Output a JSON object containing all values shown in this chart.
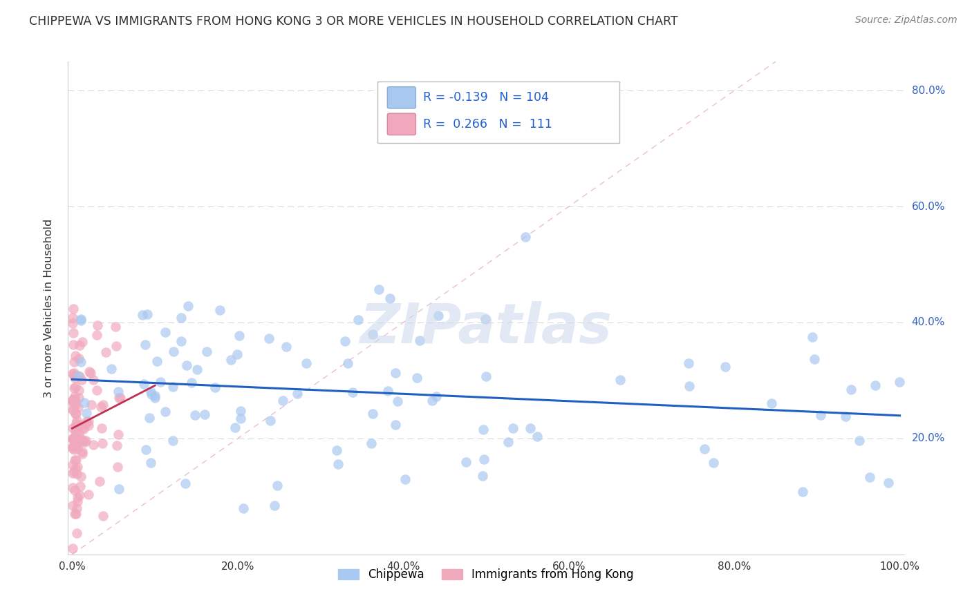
{
  "title": "CHIPPEWA VS IMMIGRANTS FROM HONG KONG 3 OR MORE VEHICLES IN HOUSEHOLD CORRELATION CHART",
  "source": "Source: ZipAtlas.com",
  "ylabel": "3 or more Vehicles in Household",
  "watermark": "ZIPatlas",
  "legend_chippewa_R": "-0.139",
  "legend_chippewa_N": "104",
  "legend_hk_R": "0.266",
  "legend_hk_N": "111",
  "chippewa_color": "#a8c8f0",
  "hk_color": "#f0a8bc",
  "chippewa_line_color": "#2060c0",
  "hk_line_color": "#c03050",
  "diagonal_color": "#e8b8c8",
  "blue_text_color": "#2060d0",
  "title_color": "#303030",
  "source_color": "#808080",
  "grid_color": "#d8d8d8",
  "xlim": [
    0.0,
    1.0
  ],
  "ylim": [
    0.0,
    0.85
  ],
  "x_ticks": [
    0.0,
    0.2,
    0.4,
    0.6,
    0.8,
    1.0
  ],
  "x_tick_labels": [
    "0.0%",
    "20.0%",
    "40.0%",
    "60.0%",
    "80.0%",
    "100.0%"
  ],
  "y_ticks": [
    0.2,
    0.4,
    0.6,
    0.8
  ],
  "y_tick_labels": [
    "20.0%",
    "40.0%",
    "60.0%",
    "80.0%"
  ]
}
